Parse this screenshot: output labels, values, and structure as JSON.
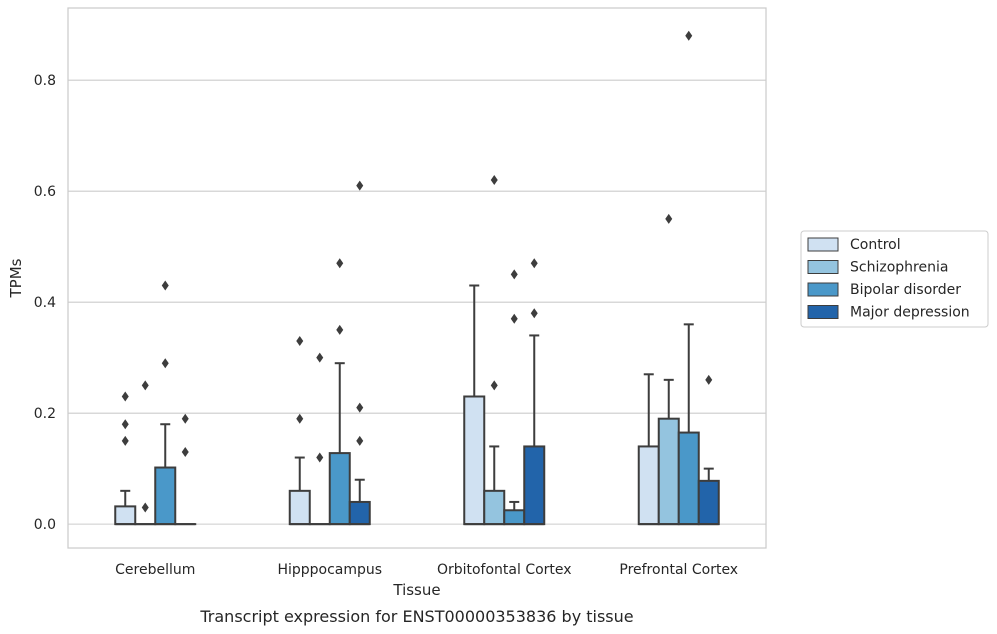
{
  "chart_data": {
    "type": "box",
    "xlabel": "Tissue",
    "ylabel": "TPMs",
    "caption": "Transcript expression for ENST00000353836 by tissue",
    "categories": [
      "Cerebellum",
      "Hipppocampus",
      "Orbitofontal Cortex",
      "Prefrontal Cortex"
    ],
    "ylim": [
      -0.043,
      0.93
    ],
    "yticks": [
      0.0,
      0.2,
      0.4,
      0.6,
      0.8
    ],
    "ytick_labels": [
      "0.0",
      "0.2",
      "0.4",
      "0.6",
      "0.8"
    ],
    "grid": "horizontal",
    "legend": {
      "position": "right",
      "entries": [
        "Control",
        "Schizophrenia",
        "Bipolar disorder",
        "Major depression"
      ]
    },
    "colors": [
      "#d0e1f2",
      "#94c4df",
      "#4a98c9",
      "#2264aa"
    ],
    "series": [
      {
        "name": "Control",
        "boxes": [
          {
            "q1": 0.0,
            "median": 0.0,
            "q3": 0.032,
            "whisker_low": 0.0,
            "whisker_high": 0.06,
            "outliers": [
              0.15,
              0.18,
              0.23
            ]
          },
          {
            "q1": 0.0,
            "median": 0.0,
            "q3": 0.06,
            "whisker_low": 0.0,
            "whisker_high": 0.12,
            "outliers": [
              0.19,
              0.33
            ]
          },
          {
            "q1": 0.0,
            "median": 0.0,
            "q3": 0.23,
            "whisker_low": 0.0,
            "whisker_high": 0.43,
            "outliers": []
          },
          {
            "q1": 0.0,
            "median": 0.0,
            "q3": 0.14,
            "whisker_low": 0.0,
            "whisker_high": 0.27,
            "outliers": []
          }
        ]
      },
      {
        "name": "Schizophrenia",
        "boxes": [
          {
            "q1": 0.0,
            "median": 0.0,
            "q3": 0.0,
            "whisker_low": 0.0,
            "whisker_high": 0.0,
            "outliers": [
              0.03,
              0.25
            ]
          },
          {
            "q1": 0.0,
            "median": 0.0,
            "q3": 0.0,
            "whisker_low": 0.0,
            "whisker_high": 0.0,
            "outliers": [
              0.12,
              0.3
            ]
          },
          {
            "q1": 0.0,
            "median": 0.0,
            "q3": 0.06,
            "whisker_low": 0.0,
            "whisker_high": 0.14,
            "outliers": [
              0.25,
              0.62
            ]
          },
          {
            "q1": 0.0,
            "median": 0.0,
            "q3": 0.19,
            "whisker_low": 0.0,
            "whisker_high": 0.26,
            "outliers": [
              0.55
            ]
          }
        ]
      },
      {
        "name": "Bipolar disorder",
        "boxes": [
          {
            "q1": 0.0,
            "median": 0.0,
            "q3": 0.102,
            "whisker_low": 0.0,
            "whisker_high": 0.18,
            "outliers": [
              0.29,
              0.43
            ]
          },
          {
            "q1": 0.0,
            "median": 0.0,
            "q3": 0.128,
            "whisker_low": 0.0,
            "whisker_high": 0.29,
            "outliers": [
              0.35,
              0.47
            ]
          },
          {
            "q1": 0.0,
            "median": 0.0,
            "q3": 0.025,
            "whisker_low": 0.0,
            "whisker_high": 0.04,
            "outliers": [
              0.37,
              0.45
            ]
          },
          {
            "q1": 0.0,
            "median": 0.0,
            "q3": 0.165,
            "whisker_low": 0.0,
            "whisker_high": 0.36,
            "outliers": [
              0.88
            ]
          }
        ]
      },
      {
        "name": "Major depression",
        "boxes": [
          {
            "q1": 0.0,
            "median": 0.0,
            "q3": 0.0,
            "whisker_low": 0.0,
            "whisker_high": 0.0,
            "outliers": [
              0.13,
              0.19
            ]
          },
          {
            "q1": 0.0,
            "median": 0.0,
            "q3": 0.04,
            "whisker_low": 0.0,
            "whisker_high": 0.08,
            "outliers": [
              0.15,
              0.21,
              0.61
            ]
          },
          {
            "q1": 0.0,
            "median": 0.0,
            "q3": 0.14,
            "whisker_low": 0.0,
            "whisker_high": 0.34,
            "outliers": [
              0.38,
              0.47
            ]
          },
          {
            "q1": 0.0,
            "median": 0.0,
            "q3": 0.078,
            "whisker_low": 0.0,
            "whisker_high": 0.1,
            "outliers": [
              0.26
            ]
          }
        ]
      }
    ]
  }
}
